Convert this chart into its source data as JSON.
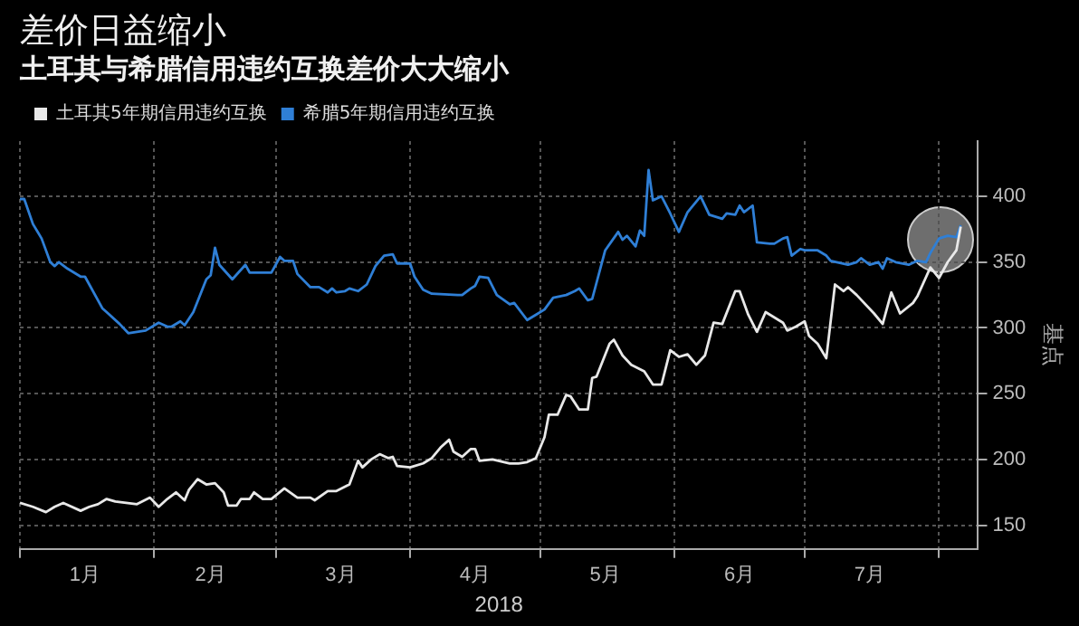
{
  "chart_data": {
    "type": "line",
    "title": "差价日益缩小",
    "subtitle": "土耳其与希腊信用违约互换差价大大缩小",
    "xlabel": "2018",
    "ylabel": "基点",
    "legend": "top left",
    "grid": true,
    "line_style": "solid",
    "marker": "none",
    "xlim": [
      "2018-01-01",
      "2018-08-10"
    ],
    "xticks": [
      {
        "value": "2018-01-01",
        "label": null
      },
      {
        "value": "2018-01-16",
        "label": "1月"
      },
      {
        "value": "2018-02-01",
        "label": null
      },
      {
        "value": "2018-02-14",
        "label": "2月"
      },
      {
        "value": "2018-03-01",
        "label": null
      },
      {
        "value": "2018-03-16",
        "label": "3月"
      },
      {
        "value": "2018-04-01",
        "label": null
      },
      {
        "value": "2018-04-16",
        "label": "4月"
      },
      {
        "value": "2018-05-01",
        "label": null
      },
      {
        "value": "2018-05-16",
        "label": "5月"
      },
      {
        "value": "2018-06-01",
        "label": null
      },
      {
        "value": "2018-06-16",
        "label": "6月"
      },
      {
        "value": "2018-07-01",
        "label": null
      },
      {
        "value": "2018-07-16",
        "label": "7月"
      },
      {
        "value": "2018-08-01",
        "label": null
      }
    ],
    "ylim": [
      132,
      442
    ],
    "yticks": [
      150,
      200,
      250,
      300,
      350,
      400
    ],
    "series": [
      {
        "name": "土耳其5年期信用违约互换",
        "color": "#e8e8e8",
        "x": [
          "2018-01-01",
          "2018-01-04",
          "2018-01-07",
          "2018-01-09",
          "2018-01-11",
          "2018-01-15",
          "2018-01-17",
          "2018-01-19",
          "2018-01-21",
          "2018-01-23",
          "2018-01-28",
          "2018-01-31",
          "2018-02-02",
          "2018-02-04",
          "2018-02-06",
          "2018-02-08",
          "2018-02-09",
          "2018-02-11",
          "2018-02-13",
          "2018-02-15",
          "2018-02-17",
          "2018-02-18",
          "2018-02-20",
          "2018-02-21",
          "2018-02-23",
          "2018-02-24",
          "2018-02-26",
          "2018-02-28",
          "2018-03-03",
          "2018-03-06",
          "2018-03-09",
          "2018-03-10",
          "2018-03-13",
          "2018-03-15",
          "2018-03-18",
          "2018-03-19",
          "2018-03-20",
          "2018-03-21",
          "2018-03-23",
          "2018-03-25",
          "2018-03-27",
          "2018-03-28",
          "2018-03-29",
          "2018-04-01",
          "2018-04-04",
          "2018-04-06",
          "2018-04-08",
          "2018-04-10",
          "2018-04-11",
          "2018-04-13",
          "2018-04-15",
          "2018-04-16",
          "2018-04-17",
          "2018-04-20",
          "2018-04-24",
          "2018-04-26",
          "2018-04-28",
          "2018-04-30",
          "2018-05-02",
          "2018-05-03",
          "2018-05-05",
          "2018-05-07",
          "2018-05-08",
          "2018-05-10",
          "2018-05-12",
          "2018-05-13",
          "2018-05-14",
          "2018-05-17",
          "2018-05-18",
          "2018-05-20",
          "2018-05-22",
          "2018-05-25",
          "2018-05-27",
          "2018-05-29",
          "2018-05-31",
          "2018-06-02",
          "2018-06-04",
          "2018-06-06",
          "2018-06-08",
          "2018-06-10",
          "2018-06-12",
          "2018-06-15",
          "2018-06-16",
          "2018-06-18",
          "2018-06-20",
          "2018-06-22",
          "2018-06-26",
          "2018-06-27",
          "2018-06-29",
          "2018-07-01",
          "2018-07-02",
          "2018-07-04",
          "2018-07-06",
          "2018-07-08",
          "2018-07-10",
          "2018-07-11",
          "2018-07-13",
          "2018-07-17",
          "2018-07-19",
          "2018-07-21",
          "2018-07-23",
          "2018-07-26",
          "2018-07-27",
          "2018-07-30",
          "2018-08-01",
          "2018-08-03",
          "2018-08-05",
          "2018-08-06"
        ],
        "values": [
          167,
          164,
          160,
          164,
          167,
          161,
          164,
          166,
          170,
          168,
          166,
          171,
          164,
          170,
          175,
          169,
          177,
          185,
          181,
          182,
          175,
          165,
          165,
          170,
          170,
          175,
          170,
          170,
          178,
          171,
          171,
          169,
          176,
          176,
          181,
          190,
          199,
          194,
          200,
          204,
          201,
          202,
          195,
          194,
          197,
          201,
          209,
          215,
          206,
          202,
          208,
          208,
          199,
          200,
          197,
          197,
          198,
          201,
          217,
          234,
          234,
          249,
          248,
          238,
          238,
          262,
          263,
          288,
          291,
          279,
          272,
          267,
          257,
          257,
          283,
          278,
          280,
          272,
          279,
          304,
          303,
          328,
          328,
          310,
          297,
          312,
          304,
          298,
          301,
          305,
          294,
          288,
          277,
          333,
          328,
          331,
          325,
          311,
          303,
          327,
          311,
          319,
          324,
          346,
          338,
          350,
          359,
          377
        ]
      },
      {
        "name": "希腊5年期信用违约互换",
        "color": "#2f7fd6",
        "x": [
          "2018-01-01",
          "2018-01-02",
          "2018-01-04",
          "2018-01-06",
          "2018-01-08",
          "2018-01-09",
          "2018-01-10",
          "2018-01-12",
          "2018-01-15",
          "2018-01-16",
          "2018-01-20",
          "2018-01-21",
          "2018-01-24",
          "2018-01-26",
          "2018-01-30",
          "2018-02-02",
          "2018-02-04",
          "2018-02-05",
          "2018-02-07",
          "2018-02-08",
          "2018-02-10",
          "2018-02-13",
          "2018-02-14",
          "2018-02-15",
          "2018-02-16",
          "2018-02-19",
          "2018-02-22",
          "2018-02-23",
          "2018-02-26",
          "2018-02-28",
          "2018-03-02",
          "2018-03-03",
          "2018-03-05",
          "2018-03-06",
          "2018-03-09",
          "2018-03-11",
          "2018-03-13",
          "2018-03-14",
          "2018-03-15",
          "2018-03-17",
          "2018-03-18",
          "2018-03-20",
          "2018-03-22",
          "2018-03-24",
          "2018-03-26",
          "2018-03-28",
          "2018-03-29",
          "2018-04-01",
          "2018-04-02",
          "2018-04-04",
          "2018-04-06",
          "2018-04-12",
          "2018-04-13",
          "2018-04-15",
          "2018-04-16",
          "2018-04-17",
          "2018-04-19",
          "2018-04-21",
          "2018-04-24",
          "2018-04-25",
          "2018-04-28",
          "2018-04-30",
          "2018-05-02",
          "2018-05-04",
          "2018-05-07",
          "2018-05-09",
          "2018-05-10",
          "2018-05-12",
          "2018-05-13",
          "2018-05-16",
          "2018-05-19",
          "2018-05-20",
          "2018-05-21",
          "2018-05-23",
          "2018-05-24",
          "2018-05-25",
          "2018-05-26",
          "2018-05-27",
          "2018-05-29",
          "2018-05-31",
          "2018-06-02",
          "2018-06-04",
          "2018-06-07",
          "2018-06-09",
          "2018-06-12",
          "2018-06-13",
          "2018-06-15",
          "2018-06-16",
          "2018-06-17",
          "2018-06-19",
          "2018-06-20",
          "2018-06-23",
          "2018-06-24",
          "2018-06-26",
          "2018-06-27",
          "2018-06-28",
          "2018-06-30",
          "2018-07-01",
          "2018-07-04",
          "2018-07-06",
          "2018-07-07",
          "2018-07-11",
          "2018-07-13",
          "2018-07-14",
          "2018-07-16",
          "2018-07-18",
          "2018-07-19",
          "2018-07-20",
          "2018-07-22",
          "2018-07-25",
          "2018-07-27",
          "2018-07-29",
          "2018-07-30",
          "2018-08-01",
          "2018-08-03",
          "2018-08-05",
          "2018-08-06"
        ],
        "values": [
          398,
          398,
          379,
          368,
          350,
          347,
          350,
          345,
          339,
          339,
          315,
          312,
          303,
          296,
          298,
          304,
          301,
          301,
          305,
          302,
          312,
          337,
          340,
          361,
          348,
          337,
          348,
          342,
          342,
          342,
          354,
          351,
          351,
          341,
          331,
          331,
          327,
          330,
          327,
          328,
          330,
          328,
          333,
          347,
          355,
          356,
          349,
          349,
          339,
          329,
          326,
          325,
          325,
          330,
          332,
          339,
          338,
          325,
          318,
          319,
          306,
          310,
          314,
          323,
          325,
          328,
          330,
          321,
          322,
          359,
          373,
          367,
          370,
          362,
          374,
          370,
          420,
          397,
          400,
          387,
          373,
          388,
          400,
          386,
          383,
          387,
          386,
          393,
          388,
          393,
          365,
          364,
          364,
          368,
          369,
          355,
          360,
          359,
          359,
          355,
          351,
          348,
          350,
          353,
          348,
          350,
          345,
          353,
          350,
          348,
          351,
          350,
          357,
          368,
          370,
          369,
          378
        ]
      }
    ]
  }
}
